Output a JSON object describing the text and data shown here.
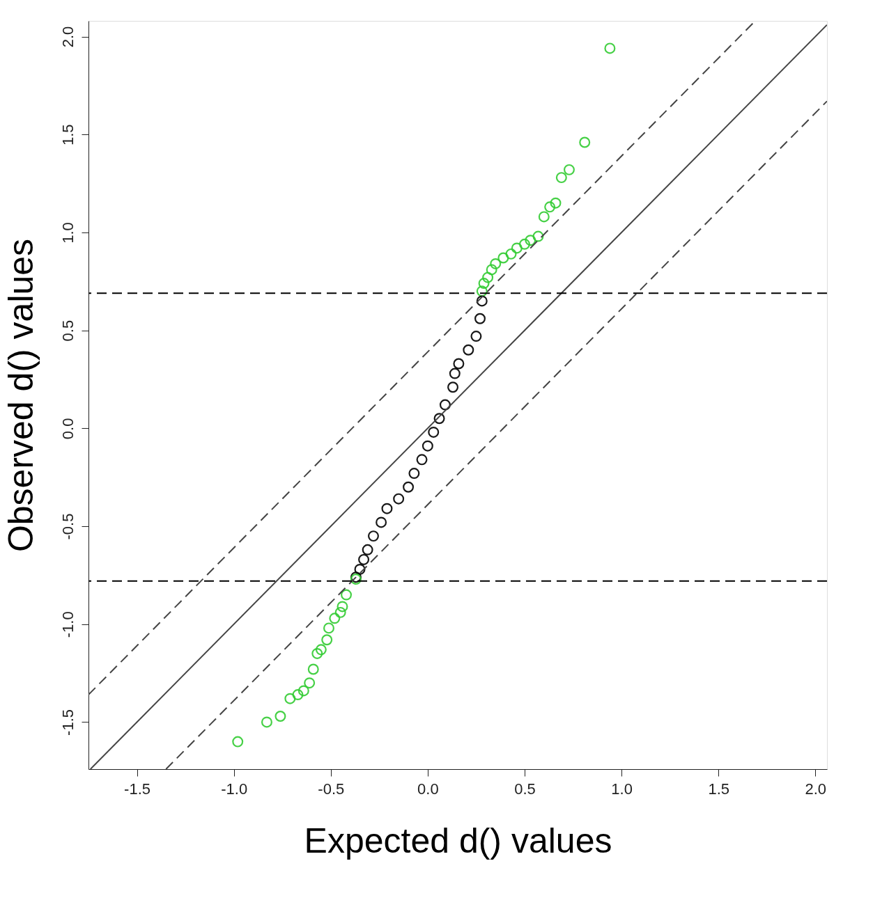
{
  "chart_data": {
    "type": "scatter",
    "xlabel": "Expected d() values",
    "ylabel": "Observed d() values",
    "xlim": [
      -1.75,
      2.06
    ],
    "ylim": [
      -1.74,
      2.08
    ],
    "xticks": [
      {
        "value": -1.5,
        "label": "-1.5"
      },
      {
        "value": -1,
        "label": "-1.0"
      },
      {
        "value": -0.5,
        "label": "-0.5"
      },
      {
        "value": 0,
        "label": "0.0"
      },
      {
        "value": 0.5,
        "label": "0.5"
      },
      {
        "value": 1,
        "label": "1.0"
      },
      {
        "value": 1.5,
        "label": "1.5"
      },
      {
        "value": 2,
        "label": "2.0"
      }
    ],
    "yticks": [
      {
        "value": -1.5,
        "label": "-1.5"
      },
      {
        "value": -1,
        "label": "-1.0"
      },
      {
        "value": -0.5,
        "label": "-0.5"
      },
      {
        "value": 0,
        "label": "0.0"
      },
      {
        "value": 0.5,
        "label": "0.5"
      },
      {
        "value": 1,
        "label": "1.0"
      },
      {
        "value": 1.5,
        "label": "1.5"
      },
      {
        "value": 2,
        "label": "2.0"
      }
    ],
    "grid": false,
    "marker": "circle",
    "series": [
      {
        "color": "#33cc33",
        "x": [
          0.94,
          0.81,
          0.73,
          0.69,
          0.66,
          0.63,
          0.6,
          0.57,
          0.53,
          0.5,
          0.46,
          0.43,
          0.39,
          0.35,
          0.33,
          0.31,
          0.29,
          0.28
        ],
        "values": [
          1.94,
          1.46,
          1.32,
          1.28,
          1.15,
          1.13,
          1.08,
          0.98,
          0.96,
          0.94,
          0.92,
          0.89,
          0.87,
          0.84,
          0.81,
          0.77,
          0.74,
          0.7
        ]
      },
      {
        "color": "#000000",
        "x": [
          0.28,
          0.27,
          0.25,
          0.21,
          0.16,
          0.14,
          0.13,
          0.09,
          0.06,
          0.03,
          0.0,
          -0.03,
          -0.07,
          -0.1,
          -0.15,
          -0.21,
          -0.24,
          -0.28,
          -0.31,
          -0.33,
          -0.35,
          -0.37
        ],
        "values": [
          0.65,
          0.56,
          0.47,
          0.4,
          0.33,
          0.28,
          0.21,
          0.12,
          0.05,
          -0.02,
          -0.09,
          -0.16,
          -0.23,
          -0.3,
          -0.36,
          -0.41,
          -0.48,
          -0.55,
          -0.62,
          -0.67,
          -0.72,
          -0.76
        ]
      },
      {
        "color": "#33cc33",
        "x": [
          -0.37,
          -0.42,
          -0.44,
          -0.45,
          -0.48,
          -0.51,
          -0.52,
          -0.55,
          -0.57,
          -0.59,
          -0.61,
          -0.64,
          -0.67,
          -0.71,
          -0.76,
          -0.83,
          -0.98
        ],
        "values": [
          -0.77,
          -0.85,
          -0.91,
          -0.94,
          -0.97,
          -1.02,
          -1.08,
          -1.13,
          -1.15,
          -1.23,
          -1.3,
          -1.34,
          -1.36,
          -1.38,
          -1.47,
          -1.5,
          -1.6
        ]
      },
      {
        "type": "line",
        "color": "#444444",
        "line_style": "solid",
        "marker": "none",
        "x": [
          -1.74,
          2.06
        ],
        "values": [
          -1.74,
          2.06
        ]
      },
      {
        "type": "line",
        "color": "#444444",
        "line_style": "dashed",
        "marker": "none",
        "x": [
          -1.75,
          1.69
        ],
        "values": [
          -1.36,
          2.08
        ]
      },
      {
        "type": "line",
        "color": "#444444",
        "line_style": "dashed",
        "marker": "none",
        "x": [
          -1.35,
          2.06
        ],
        "values": [
          -1.74,
          1.67
        ]
      }
    ],
    "ref_lines": [
      {
        "axis": "y",
        "value": 0.69,
        "color": "#000000",
        "line_style": "dashed"
      },
      {
        "axis": "y",
        "value": -0.78,
        "color": "#000000",
        "line_style": "dashed"
      }
    ]
  }
}
